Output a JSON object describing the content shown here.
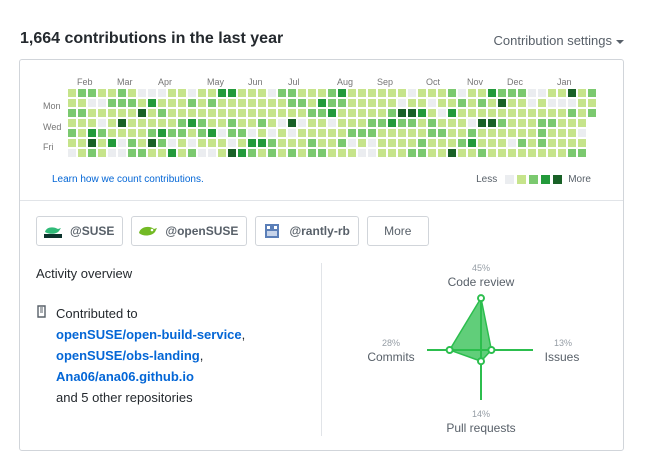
{
  "header": {
    "title": "1,664 contributions in the last year",
    "settings_label": "Contribution settings"
  },
  "calendar": {
    "months": [
      "Feb",
      "Mar",
      "Apr",
      "May",
      "Jun",
      "Jul",
      "Aug",
      "Sep",
      "Oct",
      "Nov",
      "Dec",
      "Jan"
    ],
    "days": [
      "Mon",
      "Wed",
      "Fri"
    ],
    "colors": [
      "#ebedf0",
      "#c6e48b",
      "#7bc96f",
      "#239a3b",
      "#196127"
    ],
    "weeks": 53,
    "levels_pattern": "1121210212111120113421010211121113022141001211122014111203112410121321111120311122110213102111221012113103111011311220411112131111032111213101110222110111221401212101111121122132111222301113211121111120111112101112200111211111231111042111014211211311221012211110121121311140211121111023112141123114111241211121111012111121001111101122211012111101111140211121111012212111111210111120121111310"
  },
  "footer": {
    "learn_link": "Learn how we count contributions.",
    "less": "Less",
    "more": "More"
  },
  "orgs": [
    {
      "name": "@SUSE",
      "icon": "suse-logo"
    },
    {
      "name": "@openSUSE",
      "icon": "opensuse-logo"
    },
    {
      "name": "@rantly-rb",
      "icon": "rantly-logo"
    }
  ],
  "orgs_more": "More",
  "activity": {
    "title": "Activity overview",
    "contributed_to": "Contributed to",
    "repos": [
      "openSUSE/open-build-service",
      "openSUSE/obs-landing",
      "Ana06/ana06.github.io"
    ],
    "other": "and 5 other repositories"
  },
  "radar": {
    "accent": "#2cbe4e",
    "code_review": {
      "label": "Code review",
      "pct": "45%",
      "value": 45
    },
    "issues": {
      "label": "Issues",
      "pct": "13%",
      "value": 13
    },
    "pull_requests": {
      "label": "Pull requests",
      "pct": "14%",
      "value": 14
    },
    "commits": {
      "label": "Commits",
      "pct": "28%",
      "value": 28
    }
  }
}
